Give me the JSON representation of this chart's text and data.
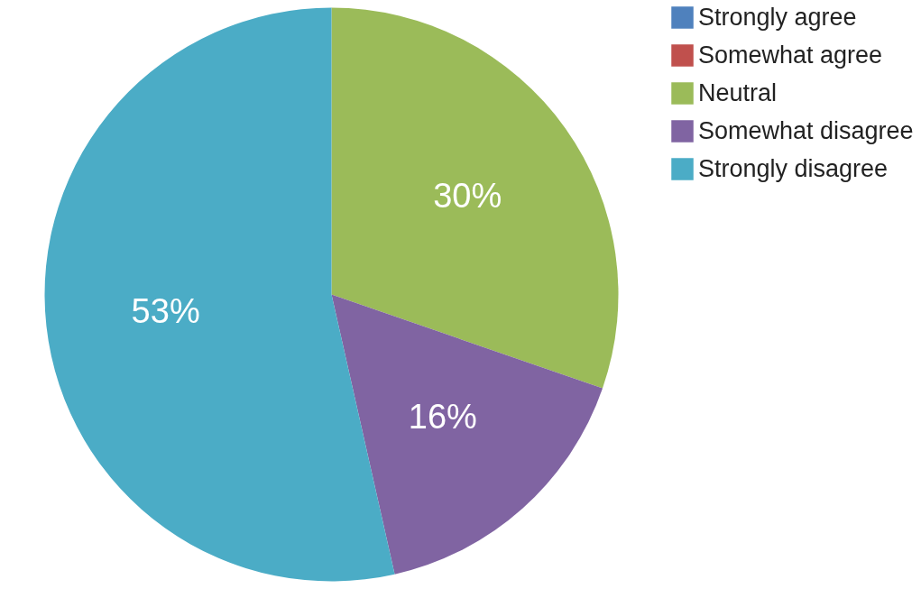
{
  "chart_data": {
    "type": "pie",
    "categories": [
      "Strongly agree",
      "Somewhat agree",
      "Neutral",
      "Somewhat disagree",
      "Strongly disagree"
    ],
    "values": [
      0,
      0,
      30,
      16,
      53
    ],
    "colors": [
      "#4f81bd",
      "#c0504d",
      "#9bbb59",
      "#8064a2",
      "#4bacc6"
    ],
    "value_labels": [
      null,
      null,
      "30%",
      "16%",
      "53%"
    ],
    "legend": "right"
  }
}
